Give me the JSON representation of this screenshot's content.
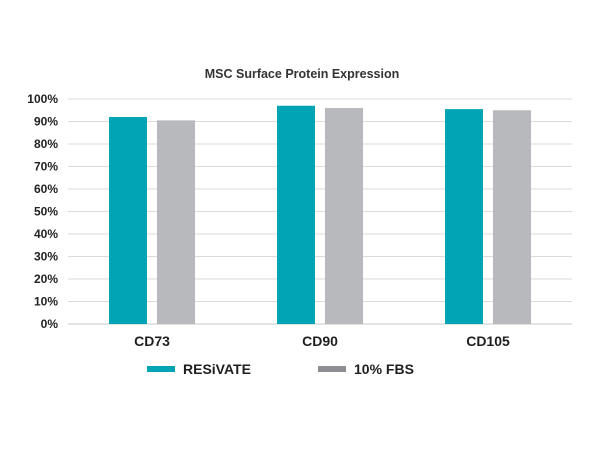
{
  "chart_data": {
    "type": "bar",
    "title": "MSC Surface Protein Expression",
    "categories": [
      "CD73",
      "CD90",
      "CD105"
    ],
    "series": [
      {
        "name": "RESiVATE",
        "values": [
          92,
          97,
          95.5
        ]
      },
      {
        "name": "10% FBS",
        "values": [
          90.5,
          96,
          95
        ]
      }
    ],
    "xlabel": "",
    "ylabel": "",
    "ylim": [
      0,
      100
    ],
    "y_ticks": [
      0,
      10,
      20,
      30,
      40,
      50,
      60,
      70,
      80,
      90,
      100
    ],
    "y_tick_labels": [
      "0%",
      "10%",
      "20%",
      "30%",
      "40%",
      "50%",
      "60%",
      "70%",
      "80%",
      "90%",
      "100%"
    ],
    "grid": true,
    "legend_position": "bottom-center"
  },
  "colors": {
    "series": [
      "#00A4B4",
      "#B8B9BC"
    ],
    "series_legend": [
      "#00A4B4",
      "#8E8F93"
    ],
    "grid": "#DADADA",
    "axis": "#C7C7C7"
  }
}
